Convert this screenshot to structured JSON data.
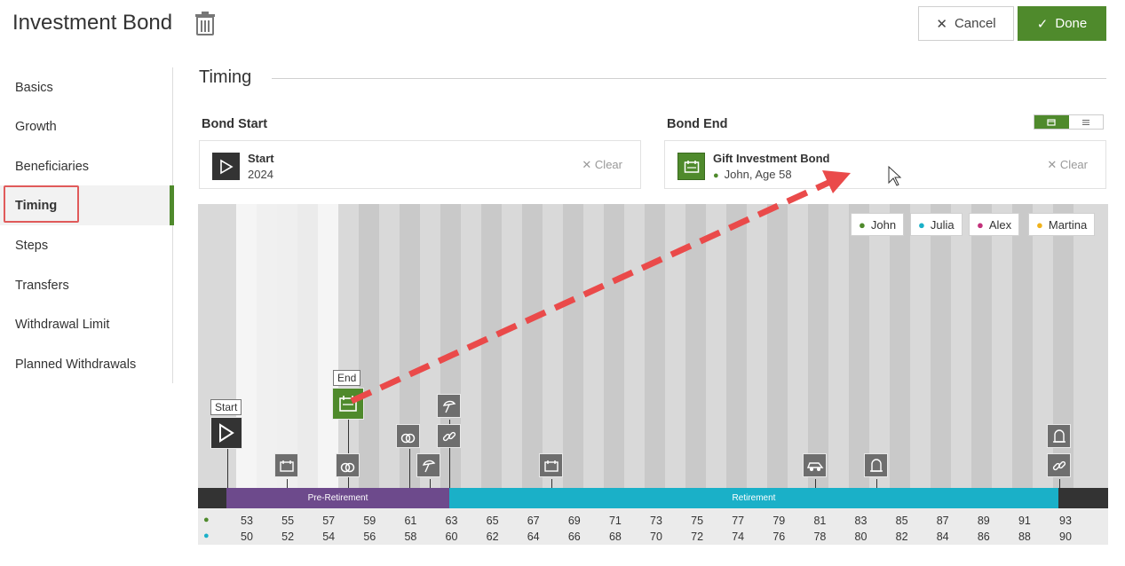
{
  "header": {
    "title": "Investment Bond",
    "cancel_label": "Cancel",
    "done_label": "Done"
  },
  "sidebar": {
    "items": [
      {
        "label": "Basics"
      },
      {
        "label": "Growth"
      },
      {
        "label": "Beneficiaries"
      },
      {
        "label": "Timing"
      },
      {
        "label": "Steps"
      },
      {
        "label": "Transfers"
      },
      {
        "label": "Withdrawal Limit"
      },
      {
        "label": "Planned Withdrawals"
      }
    ],
    "active": "Timing"
  },
  "section": {
    "title": "Timing",
    "bond_start_label": "Bond Start",
    "bond_end_label": "Bond End",
    "start_card": {
      "title": "Start",
      "subtitle": "2024",
      "clear": "Clear"
    },
    "end_card": {
      "title": "Gift Investment Bond",
      "subtitle": "John, Age 58",
      "clear": "Clear"
    }
  },
  "legend": [
    {
      "name": "John",
      "color": "#4f8a2c"
    },
    {
      "name": "Julia",
      "color": "#1ab0c8"
    },
    {
      "name": "Alex",
      "color": "#c2307a"
    },
    {
      "name": "Martina",
      "color": "#f0b21c"
    }
  ],
  "timeline": {
    "start_flag": "Start",
    "end_flag": "End",
    "phases": [
      {
        "label": "Pre-Retirement",
        "color": "#6d4a8c"
      },
      {
        "label": "Retirement",
        "color": "#1ab0c8"
      }
    ],
    "john_ages": [
      "53",
      "55",
      "57",
      "59",
      "61",
      "63",
      "65",
      "67",
      "69",
      "71",
      "73",
      "75",
      "77",
      "79",
      "81",
      "83",
      "85",
      "87",
      "89",
      "91",
      "93"
    ],
    "julia_ages": [
      "50",
      "52",
      "54",
      "56",
      "58",
      "60",
      "62",
      "64",
      "66",
      "68",
      "70",
      "72",
      "74",
      "76",
      "78",
      "80",
      "82",
      "84",
      "86",
      "88",
      "90"
    ]
  }
}
